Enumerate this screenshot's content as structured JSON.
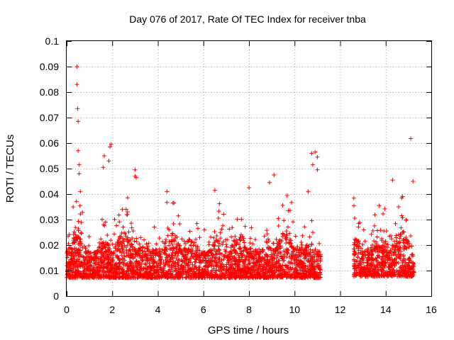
{
  "chart_data": {
    "type": "scatter",
    "title": "Day 076 of 2017, Rate Of TEC Index for receiver tnba",
    "xlabel": "GPS time / hours",
    "ylabel": "ROTI / TECUs",
    "xlim": [
      0,
      16
    ],
    "ylim": [
      0,
      0.1
    ],
    "xticks": [
      "0",
      "2",
      "4",
      "6",
      "8",
      "10",
      "12",
      "14",
      "16"
    ],
    "yticks": [
      "0",
      "0.01",
      "0.02",
      "0.03",
      "0.04",
      "0.05",
      "0.06",
      "0.07",
      "0.08",
      "0.09",
      "0.1"
    ],
    "grid": true,
    "marker": "+",
    "color": "#ff0000",
    "gap": [
      11.15,
      12.6
    ],
    "series": [
      {
        "name": "ROTI",
        "segments": [
          {
            "x_start": 0.0,
            "x_end": 11.15,
            "baseline": 0.013,
            "spread": 0.012
          },
          {
            "x_start": 12.6,
            "x_end": 15.25,
            "baseline": 0.014,
            "spread": 0.012
          }
        ],
        "notable_points": [
          {
            "x": 0.45,
            "y": 0.09
          },
          {
            "x": 0.45,
            "y": 0.083
          },
          {
            "x": 0.48,
            "y": 0.0735
          },
          {
            "x": 0.5,
            "y": 0.0685
          },
          {
            "x": 0.5,
            "y": 0.057
          },
          {
            "x": 0.55,
            "y": 0.0515
          },
          {
            "x": 0.55,
            "y": 0.048
          },
          {
            "x": 0.6,
            "y": 0.041
          },
          {
            "x": 1.95,
            "y": 0.0595
          },
          {
            "x": 1.9,
            "y": 0.0585
          },
          {
            "x": 1.65,
            "y": 0.055
          },
          {
            "x": 1.85,
            "y": 0.053
          },
          {
            "x": 1.6,
            "y": 0.0505
          },
          {
            "x": 3.0,
            "y": 0.0495
          },
          {
            "x": 3.0,
            "y": 0.047
          },
          {
            "x": 3.05,
            "y": 0.0465
          },
          {
            "x": 4.4,
            "y": 0.041
          },
          {
            "x": 6.5,
            "y": 0.0415
          },
          {
            "x": 9.1,
            "y": 0.0475
          },
          {
            "x": 8.9,
            "y": 0.0445
          },
          {
            "x": 8.0,
            "y": 0.0425
          },
          {
            "x": 10.9,
            "y": 0.0565
          },
          {
            "x": 10.75,
            "y": 0.056
          },
          {
            "x": 11.0,
            "y": 0.0545
          },
          {
            "x": 10.8,
            "y": 0.0515
          },
          {
            "x": 11.0,
            "y": 0.0495
          },
          {
            "x": 10.6,
            "y": 0.041
          },
          {
            "x": 15.1,
            "y": 0.0618
          },
          {
            "x": 14.3,
            "y": 0.0455
          },
          {
            "x": 15.2,
            "y": 0.045
          },
          {
            "x": 14.7,
            "y": 0.0385
          }
        ]
      }
    ]
  }
}
